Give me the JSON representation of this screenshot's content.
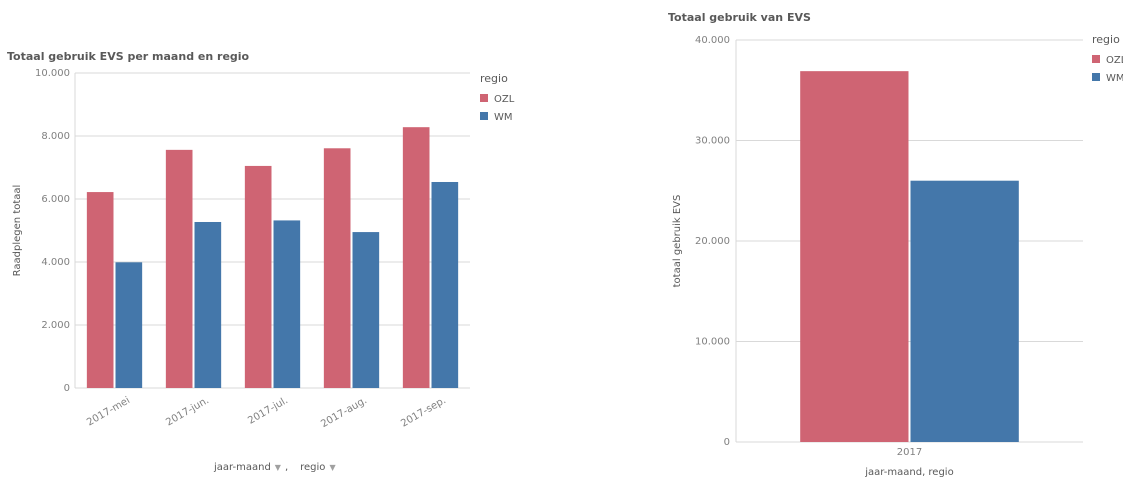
{
  "chart_data": [
    {
      "type": "bar",
      "title": "Totaal gebruik EVS per maand en regio",
      "ylabel": "Raadplegen totaal",
      "xlabel_parts": [
        "jaar-maand",
        "regio"
      ],
      "xlabel_separator": ",",
      "ylim": [
        0,
        10000
      ],
      "y_ticks": [
        {
          "value": 0,
          "label": "0"
        },
        {
          "value": 2000,
          "label": "2.000"
        },
        {
          "value": 4000,
          "label": "4.000"
        },
        {
          "value": 6000,
          "label": "6.000"
        },
        {
          "value": 8000,
          "label": "8.000"
        },
        {
          "value": 10000,
          "label": "10.000"
        }
      ],
      "categories": [
        "2017-mei",
        "2017-jun.",
        "2017-jul.",
        "2017-aug.",
        "2017-sep."
      ],
      "legend_title": "regio",
      "legend_position": "right",
      "grid": true,
      "series": [
        {
          "name": "OZL",
          "color": "#cf6473",
          "values": [
            6220,
            7560,
            7050,
            7610,
            8280
          ]
        },
        {
          "name": "WM",
          "color": "#4477aa",
          "values": [
            3990,
            5270,
            5320,
            4950,
            6540
          ]
        }
      ]
    },
    {
      "type": "bar",
      "title": "Totaal gebruik van EVS",
      "ylabel": "totaal gebruik EVS",
      "xlabel": "jaar-maand, regio",
      "ylim": [
        0,
        40000
      ],
      "y_ticks": [
        {
          "value": 0,
          "label": "0"
        },
        {
          "value": 10000,
          "label": "10.000"
        },
        {
          "value": 20000,
          "label": "20.000"
        },
        {
          "value": 30000,
          "label": "30.000"
        },
        {
          "value": 40000,
          "label": "40.000"
        }
      ],
      "categories": [
        "2017"
      ],
      "legend_title": "regio",
      "legend_position": "right",
      "grid": true,
      "series": [
        {
          "name": "OZL",
          "color": "#cf6473",
          "values": [
            36900
          ]
        },
        {
          "name": "WM",
          "color": "#4477aa",
          "values": [
            26000
          ]
        }
      ]
    }
  ]
}
